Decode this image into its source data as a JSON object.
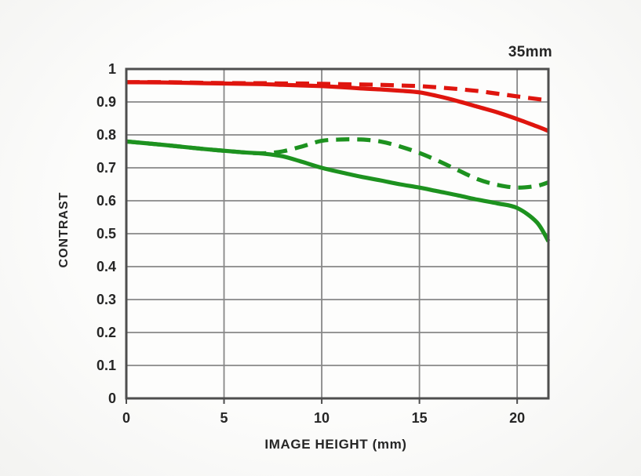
{
  "window": {
    "title": "35mm"
  },
  "colors": {
    "red": "#df150e",
    "green": "#1d921f",
    "frame": "#4e4e4e",
    "grid": "#878787",
    "text": "#262626",
    "background": "#fbfbfa"
  },
  "chart_data": {
    "type": "line",
    "title": "35mm",
    "xlabel": "IMAGE HEIGHT (mm)",
    "ylabel": "CONTRAST",
    "xlim": [
      0,
      21.6
    ],
    "ylim": [
      0,
      1
    ],
    "grid": true,
    "legend": "none",
    "x_gridlines": [
      5,
      10,
      15,
      20
    ],
    "y_gridlines": [
      0.1,
      0.2,
      0.3,
      0.4,
      0.5,
      0.6,
      0.7,
      0.8,
      0.9
    ],
    "x_ticks": [
      {
        "label": "0",
        "v": 0
      },
      {
        "label": "5",
        "v": 5
      },
      {
        "label": "10",
        "v": 10
      },
      {
        "label": "15",
        "v": 15
      },
      {
        "label": "20",
        "v": 20
      }
    ],
    "y_ticks": [
      {
        "label": "1",
        "v": 1.0
      },
      {
        "label": "0.9",
        "v": 0.9
      },
      {
        "label": "0.8",
        "v": 0.8
      },
      {
        "label": "0.7",
        "v": 0.7
      },
      {
        "label": "0.6",
        "v": 0.6
      },
      {
        "label": "0.5",
        "v": 0.5
      },
      {
        "label": "0.4",
        "v": 0.4
      },
      {
        "label": "0.3",
        "v": 0.3
      },
      {
        "label": "0.2",
        "v": 0.2
      },
      {
        "label": "0.1",
        "v": 0.1
      },
      {
        "label": "0",
        "v": 0.0
      }
    ],
    "x": [
      0,
      2,
      4,
      6,
      7,
      8,
      9,
      10,
      11,
      12,
      13,
      14,
      15,
      16,
      17,
      18,
      19,
      20,
      21,
      21.6
    ],
    "series": [
      {
        "name": "red-dashed",
        "style": "dashed",
        "color": "#df150e",
        "values": [
          0.96,
          0.96,
          0.958,
          0.957,
          0.957,
          0.956,
          0.956,
          0.955,
          0.954,
          0.953,
          0.952,
          0.95,
          0.948,
          0.944,
          0.939,
          0.933,
          0.925,
          0.917,
          0.909,
          0.905
        ]
      },
      {
        "name": "red-solid",
        "style": "solid",
        "color": "#df150e",
        "values": [
          0.96,
          0.959,
          0.957,
          0.955,
          0.954,
          0.952,
          0.95,
          0.948,
          0.945,
          0.941,
          0.938,
          0.934,
          0.929,
          0.917,
          0.902,
          0.885,
          0.868,
          0.848,
          0.826,
          0.812
        ]
      },
      {
        "name": "green-dashed",
        "style": "dashed",
        "color": "#1d921f",
        "values": [
          0.78,
          0.769,
          0.757,
          0.747,
          0.744,
          0.75,
          0.765,
          0.782,
          0.786,
          0.786,
          0.78,
          0.765,
          0.745,
          0.72,
          0.692,
          0.665,
          0.648,
          0.64,
          0.645,
          0.656
        ]
      },
      {
        "name": "green-solid",
        "style": "solid",
        "color": "#1d921f",
        "values": [
          0.78,
          0.769,
          0.757,
          0.747,
          0.743,
          0.735,
          0.718,
          0.7,
          0.686,
          0.673,
          0.662,
          0.65,
          0.64,
          0.628,
          0.616,
          0.603,
          0.592,
          0.578,
          0.535,
          0.477
        ]
      }
    ]
  },
  "layout_note": ""
}
